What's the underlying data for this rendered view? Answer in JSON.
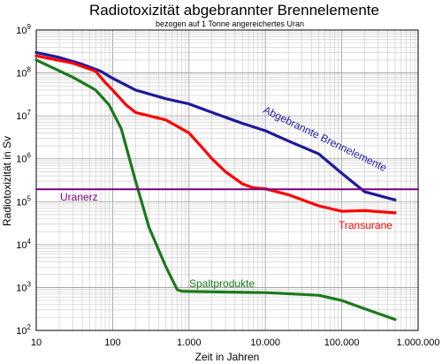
{
  "chart_data": {
    "type": "line",
    "title": "Radiotoxizität abgebrannter Brennelemente",
    "subtitle": "bezogen auf 1 Tonne angereichertes Uran",
    "xlabel": "Zeit in Jahren",
    "ylabel": "Radiotoxizität in Sv",
    "x_scale": "log",
    "y_scale": "log",
    "xlim": [
      10,
      1000000
    ],
    "ylim": [
      100,
      1000000000
    ],
    "grid": true,
    "x_ticks": [
      {
        "value": 10,
        "label": "10"
      },
      {
        "value": 100,
        "label": "100"
      },
      {
        "value": 1000,
        "label": "1.000"
      },
      {
        "value": 10000,
        "label": "10.000"
      },
      {
        "value": 100000,
        "label": "100.000"
      },
      {
        "value": 1000000,
        "label": "1.000.000"
      }
    ],
    "y_ticks": [
      {
        "value": 100,
        "base": "10",
        "exp": "2"
      },
      {
        "value": 1000,
        "base": "10",
        "exp": "3"
      },
      {
        "value": 10000,
        "base": "10",
        "exp": "4"
      },
      {
        "value": 100000,
        "base": "10",
        "exp": "5"
      },
      {
        "value": 1000000,
        "base": "10",
        "exp": "6"
      },
      {
        "value": 10000000,
        "base": "10",
        "exp": "7"
      },
      {
        "value": 100000000,
        "base": "10",
        "exp": "8"
      },
      {
        "value": 1000000000,
        "base": "10",
        "exp": "9"
      }
    ],
    "series": [
      {
        "name": "Abgebrannte Brennelemente",
        "color": "#1f1a99",
        "x": [
          10,
          20,
          40,
          70,
          100,
          200,
          500,
          1000,
          2000,
          5000,
          10000,
          20000,
          50000,
          100000,
          200000,
          500000
        ],
        "y": [
          300000000,
          230000000,
          160000000,
          110000000,
          75000000,
          40000000,
          25000000,
          19000000,
          12000000,
          6700000,
          4500000,
          2600000,
          1300000,
          460000,
          170000,
          110000
        ]
      },
      {
        "name": "Transurane",
        "color": "#ff0000",
        "x": [
          10,
          30,
          60,
          80,
          100,
          150,
          200,
          300,
          500,
          1000,
          1500,
          2000,
          3000,
          5000,
          7000,
          10000,
          20000,
          50000,
          100000,
          200000,
          500000
        ],
        "y": [
          250000000,
          170000000,
          110000000,
          60000000,
          40000000,
          18000000,
          12000000,
          10000000,
          8000000,
          4000000,
          1800000,
          1000000,
          500000,
          260000,
          210000,
          200000,
          145000,
          80000,
          60000,
          62000,
          55000
        ]
      },
      {
        "name": "Spaltprodukte",
        "color": "#1a7a1a",
        "x": [
          10,
          30,
          60,
          90,
          130,
          200,
          300,
          500,
          700,
          800,
          1000,
          10000,
          50000,
          100000,
          200000,
          500000
        ],
        "y": [
          200000000,
          80000000,
          40000000,
          18000000,
          5000000,
          300000,
          25000,
          3000,
          900,
          820,
          810,
          760,
          660,
          500,
          320,
          180
        ]
      },
      {
        "name": "Uranerz",
        "color": "#800080",
        "x": [
          10,
          1000000
        ],
        "y": [
          195000,
          195000
        ]
      }
    ]
  }
}
